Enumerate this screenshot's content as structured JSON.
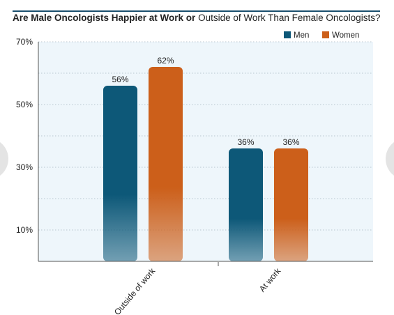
{
  "chart_data": {
    "type": "bar",
    "title_bold": "Are Male Oncologists Happier at Work or",
    "title_rest": "Outside of Work Than Female Oncologists?",
    "categories": [
      "Outside of work",
      "At work"
    ],
    "series": [
      {
        "name": "Men",
        "values": [
          56,
          36
        ],
        "labels": [
          "56%",
          "36%"
        ],
        "color": "#0d5878"
      },
      {
        "name": "Women",
        "values": [
          62,
          36
        ],
        "labels": [
          "62%",
          "36%"
        ],
        "color": "#cc5f1a"
      }
    ],
    "yticks": [
      {
        "value": 10,
        "label": "10%"
      },
      {
        "value": 30,
        "label": "30%"
      },
      {
        "value": 50,
        "label": "50%"
      },
      {
        "value": 70,
        "label": "70%"
      }
    ],
    "ylim": [
      0,
      70
    ],
    "grid": true,
    "legend_position": "top-right",
    "plot_background": "#eef6fb",
    "grid_color": "#b8c6cf"
  }
}
